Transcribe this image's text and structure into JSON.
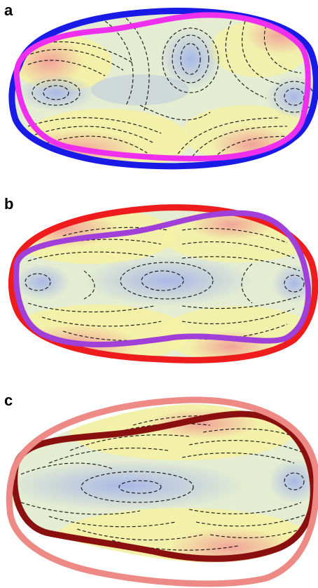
{
  "panels": [
    {
      "label": "a",
      "colors": {
        "outer": "#1a1ae6",
        "inner": "#ee30ee"
      }
    },
    {
      "label": "b",
      "colors": {
        "outer": "#ee1c1c",
        "inner": "#a040d8"
      }
    },
    {
      "label": "c",
      "colors": {
        "outer": "#ee8a86",
        "inner": "#8a1010"
      }
    }
  ],
  "field_colors": {
    "low": "#a9b8e6",
    "mid": "#f4f2a4",
    "high": "#f2a098"
  }
}
